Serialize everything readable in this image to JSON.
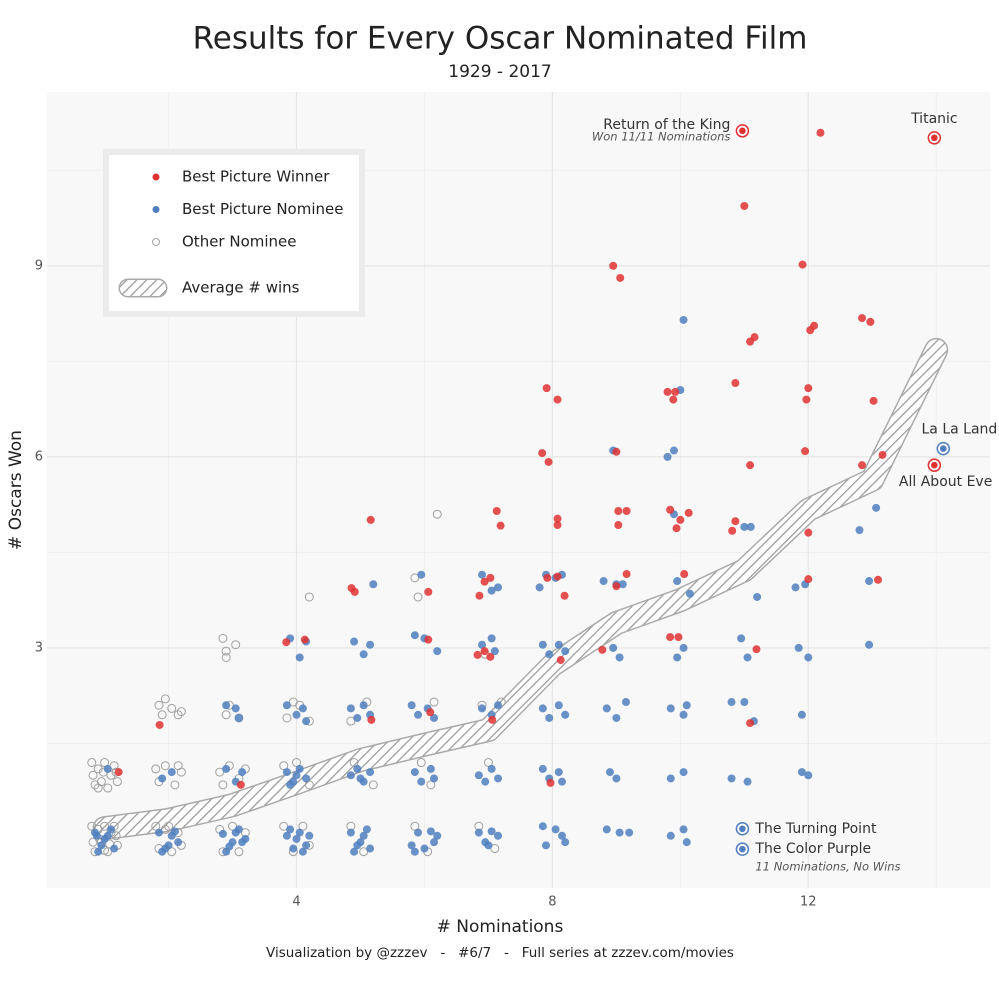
{
  "chart_data": {
    "type": "scatter",
    "title": "Results for Every Oscar Nominated Film",
    "subtitle": "1929 - 2017",
    "x_label": "# Nominations",
    "y_label": "# Oscars Won",
    "caption": "Visualization by @zzzev   -   #6/7   -   Full series at zzzev.com/movies",
    "xlim": [
      0.1,
      14.84
    ],
    "ylim": [
      -0.77,
      11.73
    ],
    "xticks": [
      4,
      8,
      12
    ],
    "yticks": [
      3,
      6,
      9
    ],
    "grid": true,
    "minor_grid": true,
    "series": [
      {
        "name": "Best Picture Winner",
        "color": "#e03131",
        "filled": true,
        "x": [
          12.19,
          11.0,
          8.95,
          9.06,
          11.91,
          12.03,
          12.09,
          12.84,
          12.97,
          11.09,
          11.16,
          10.86,
          12.0,
          11.97,
          7.91,
          8.08,
          9.8,
          9.89,
          9.92,
          13.02,
          9.0,
          7.84,
          7.94,
          11.95,
          11.09,
          12.84,
          13.16,
          5.16,
          7.13,
          7.19,
          8.08,
          8.08,
          9.03,
          9.16,
          9.03,
          9.84,
          10.0,
          10.13,
          9.94,
          10.86,
          10.81,
          12.0,
          4.86,
          4.91,
          6.06,
          6.94,
          7.03,
          6.86,
          7.92,
          8.08,
          8.19,
          9.0,
          9.16,
          10.06,
          12.0,
          13.09,
          3.84,
          4.13,
          6.06,
          6.83,
          6.94,
          7.03,
          8.13,
          8.78,
          9.84,
          9.97,
          11.19,
          1.86,
          5.17,
          6.09,
          7.06,
          11.09,
          1.22,
          3.13,
          7.97
        ],
        "values": [
          11.09,
          9.94,
          9.0,
          8.81,
          9.02,
          7.99,
          8.06,
          8.18,
          8.12,
          7.81,
          7.88,
          7.16,
          7.08,
          6.9,
          7.08,
          6.9,
          7.02,
          6.9,
          7.02,
          6.88,
          6.08,
          6.06,
          5.92,
          6.09,
          5.87,
          5.87,
          6.03,
          5.01,
          5.15,
          4.92,
          5.03,
          4.93,
          5.15,
          5.15,
          4.93,
          5.17,
          5.01,
          5.12,
          4.88,
          4.99,
          4.84,
          4.81,
          3.94,
          3.88,
          3.88,
          4.04,
          4.1,
          3.82,
          4.1,
          4.12,
          3.82,
          3.97,
          4.16,
          4.16,
          4.08,
          4.07,
          3.09,
          3.13,
          3.13,
          2.89,
          2.95,
          2.86,
          2.81,
          2.97,
          3.17,
          3.17,
          2.98,
          1.79,
          1.87,
          1.99,
          1.87,
          1.82,
          1.05,
          0.85,
          0.88
        ]
      },
      {
        "name": "Best Picture Nominee",
        "color": "#4f7fbf",
        "filled": true,
        "x": [
          0.85,
          0.95,
          1.05,
          1.15,
          0.9,
          1.1,
          1.0,
          0.88,
          1.85,
          1.95,
          2.05,
          2.15,
          1.9,
          2.1,
          2.0,
          2.85,
          2.95,
          3.05,
          3.15,
          2.9,
          3.1,
          3.0,
          3.2,
          3.85,
          3.95,
          4.05,
          4.15,
          3.9,
          4.1,
          4.2,
          4.0,
          4.85,
          4.95,
          5.05,
          5.15,
          4.9,
          5.1,
          5.0,
          5.8,
          5.9,
          6.0,
          6.1,
          6.2,
          5.85,
          6.15,
          6.85,
          6.95,
          7.05,
          7.15,
          7.0,
          7.85,
          7.9,
          8.05,
          8.15,
          8.2,
          8.85,
          9.05,
          9.2,
          9.85,
          10.05,
          10.1,
          1.05,
          1.9,
          2.05,
          2.9,
          3.05,
          3.15,
          3.85,
          3.95,
          4.05,
          4.15,
          4.0,
          3.9,
          4.85,
          4.95,
          5.05,
          5.15,
          5.0,
          5.85,
          5.95,
          6.1,
          6.15,
          6.85,
          6.95,
          7.05,
          7.15,
          7.85,
          7.95,
          8.1,
          8.15,
          8.9,
          9.0,
          9.85,
          10.05,
          10.8,
          11.05,
          11.9,
          12.0,
          2.9,
          3.05,
          3.1,
          3.85,
          4.0,
          4.1,
          4.15,
          4.85,
          4.95,
          5.05,
          5.15,
          5.8,
          5.9,
          6.05,
          6.15,
          6.9,
          7.05,
          7.15,
          7.85,
          7.95,
          8.1,
          8.2,
          8.85,
          9.0,
          9.15,
          9.85,
          10.05,
          10.1,
          10.8,
          11.0,
          11.15,
          11.9,
          3.9,
          4.05,
          4.15,
          4.9,
          5.05,
          5.15,
          5.85,
          6.0,
          6.2,
          6.9,
          7.05,
          7.1,
          7.85,
          7.95,
          8.1,
          8.2,
          9.05,
          8.95,
          9.95,
          10.05,
          10.95,
          11.05,
          11.85,
          12.0,
          12.95,
          5.2,
          5.95,
          6.9,
          7.05,
          7.15,
          7.8,
          7.9,
          8.05,
          8.15,
          8.8,
          9.0,
          9.1,
          9.95,
          10.15,
          11.2,
          11.8,
          11.95,
          12.95,
          9.9,
          11.0,
          11.1,
          12.8,
          13.06,
          8.95,
          9.8,
          9.9,
          10.0,
          10.05
        ],
        "values": [
          0.1,
          -0.1,
          0.05,
          -0.15,
          -0.2,
          0.15,
          0.0,
          0.05,
          0.1,
          -0.15,
          0.05,
          -0.05,
          -0.2,
          0.12,
          -0.1,
          0.08,
          -0.12,
          0.1,
          -0.05,
          -0.2,
          0.15,
          -0.05,
          0.0,
          0.05,
          -0.15,
          0.1,
          -0.1,
          0.15,
          -0.2,
          0.05,
          0.0,
          0.1,
          -0.1,
          0.05,
          -0.15,
          -0.2,
          0.15,
          -0.05,
          -0.1,
          0.1,
          -0.15,
          0.12,
          0.05,
          -0.2,
          -0.05,
          0.1,
          -0.05,
          0.12,
          0.05,
          -0.1,
          0.2,
          -0.1,
          0.15,
          0.05,
          -0.05,
          0.15,
          0.1,
          0.1,
          0.05,
          0.15,
          -0.05,
          1.1,
          0.95,
          1.05,
          1.1,
          0.9,
          1.05,
          1.05,
          0.9,
          1.1,
          0.95,
          1.0,
          0.85,
          1.0,
          1.1,
          0.9,
          1.05,
          0.95,
          1.05,
          0.9,
          1.1,
          0.95,
          1.0,
          0.9,
          1.1,
          0.95,
          1.1,
          0.95,
          1.05,
          0.9,
          1.05,
          0.95,
          0.95,
          1.05,
          0.95,
          0.9,
          1.05,
          1.0,
          2.1,
          2.05,
          1.9,
          2.1,
          1.95,
          2.05,
          1.85,
          2.05,
          1.9,
          2.1,
          1.95,
          2.1,
          1.95,
          2.05,
          1.9,
          2.05,
          1.95,
          2.1,
          2.05,
          1.9,
          2.1,
          1.95,
          2.05,
          1.9,
          2.15,
          2.05,
          1.95,
          2.1,
          2.15,
          2.15,
          1.85,
          1.95,
          3.15,
          2.85,
          3.1,
          3.1,
          2.9,
          3.05,
          3.2,
          3.15,
          2.95,
          3.05,
          3.15,
          2.95,
          3.05,
          2.9,
          3.05,
          2.95,
          2.85,
          3.0,
          2.85,
          3.0,
          3.15,
          2.85,
          3.0,
          2.85,
          3.05,
          4.0,
          4.15,
          4.15,
          3.9,
          3.95,
          3.95,
          4.15,
          4.1,
          4.15,
          4.05,
          4.0,
          4.0,
          4.05,
          3.85,
          3.8,
          3.95,
          4.0,
          4.05,
          5.1,
          4.9,
          4.9,
          4.85,
          5.2,
          6.1,
          6.0,
          6.1,
          7.05,
          8.15
        ]
      },
      {
        "name": "Other Nominee",
        "color": "#a0a0a0",
        "filled": false,
        "x": [
          0.8,
          0.85,
          0.9,
          0.95,
          1.0,
          1.05,
          1.1,
          1.15,
          1.2,
          0.82,
          1.18,
          1.0,
          0.92,
          1.08,
          0.8,
          0.85,
          0.9,
          0.95,
          1.0,
          1.05,
          1.1,
          1.15,
          1.2,
          0.82,
          1.18,
          0.98,
          0.9,
          1.8,
          1.85,
          1.95,
          2.05,
          2.15,
          2.2,
          2.0,
          1.8,
          1.85,
          1.95,
          2.1,
          2.2,
          2.15,
          1.85,
          1.9,
          1.95,
          2.05,
          2.15,
          2.2,
          2.8,
          2.85,
          3.0,
          3.1,
          3.2,
          2.8,
          2.85,
          2.95,
          3.1,
          3.2,
          2.9,
          2.95,
          3.1,
          2.85,
          2.9,
          2.9,
          3.05,
          3.8,
          3.95,
          4.1,
          4.2,
          3.8,
          4.0,
          4.2,
          3.85,
          3.95,
          4.05,
          4.2,
          4.2,
          4.85,
          5.05,
          4.9,
          5.2,
          4.85,
          5.1,
          5.85,
          6.05,
          5.95,
          6.1,
          6.15,
          5.85,
          5.9,
          6.2,
          6.85,
          7.1,
          7.0,
          6.9,
          7.2,
          6.95
        ],
        "values": [
          0.2,
          -0.2,
          0.15,
          -0.05,
          0.2,
          -0.2,
          0.1,
          0.2,
          -0.1,
          -0.05,
          0.05,
          -0.18,
          0.0,
          -0.08,
          1.2,
          0.85,
          1.1,
          0.9,
          1.2,
          0.8,
          1.0,
          1.15,
          0.9,
          1.0,
          1.05,
          1.05,
          0.8,
          0.2,
          -0.15,
          0.15,
          -0.2,
          0.1,
          -0.1,
          0.2,
          1.1,
          0.9,
          1.15,
          0.85,
          1.05,
          1.15,
          2.1,
          1.95,
          2.2,
          2.05,
          1.95,
          2.0,
          0.15,
          -0.2,
          0.2,
          -0.2,
          0.1,
          1.05,
          0.85,
          1.15,
          0.95,
          1.1,
          1.95,
          2.1,
          1.9,
          3.15,
          2.95,
          2.85,
          3.05,
          0.2,
          -0.2,
          0.2,
          -0.1,
          1.15,
          1.2,
          0.85,
          1.9,
          2.15,
          2.1,
          1.85,
          3.8,
          0.2,
          -0.2,
          1.2,
          0.85,
          1.85,
          2.15,
          0.2,
          -0.2,
          1.2,
          0.85,
          2.15,
          4.1,
          3.8,
          5.1,
          0.2,
          -0.15,
          1.2,
          2.1,
          2.15,
          2.9
        ]
      }
    ],
    "average": {
      "name": "Average # wins",
      "x": [
        1,
        2,
        3,
        4,
        5,
        6,
        7,
        8,
        9,
        10,
        11,
        12,
        13,
        14
      ],
      "values": [
        0.17,
        0.3,
        0.53,
        0.88,
        1.24,
        1.48,
        1.71,
        2.73,
        3.39,
        3.75,
        4.22,
        5.17,
        5.64,
        7.68
      ]
    },
    "annotations": [
      {
        "text": "Return of the King",
        "note": "Won 11/11 Nominations",
        "x": 10.97,
        "y": 11.12,
        "color": "#e03131"
      },
      {
        "text": "Titanic",
        "x": 13.97,
        "y": 11.01,
        "color": "#e03131"
      },
      {
        "text": "La La Land",
        "x": 14.11,
        "y": 6.13,
        "color": "#4f7fbf"
      },
      {
        "text": "All About Eve",
        "x": 13.97,
        "y": 5.87,
        "color": "#e03131"
      },
      {
        "text": "The Turning Point",
        "x": 10.97,
        "y": 0.16,
        "color": "#4f7fbf"
      },
      {
        "text": "The Color Purple",
        "note": "11 Nominations, No Wins",
        "x": 10.97,
        "y": -0.16,
        "color": "#4f7fbf"
      }
    ]
  }
}
